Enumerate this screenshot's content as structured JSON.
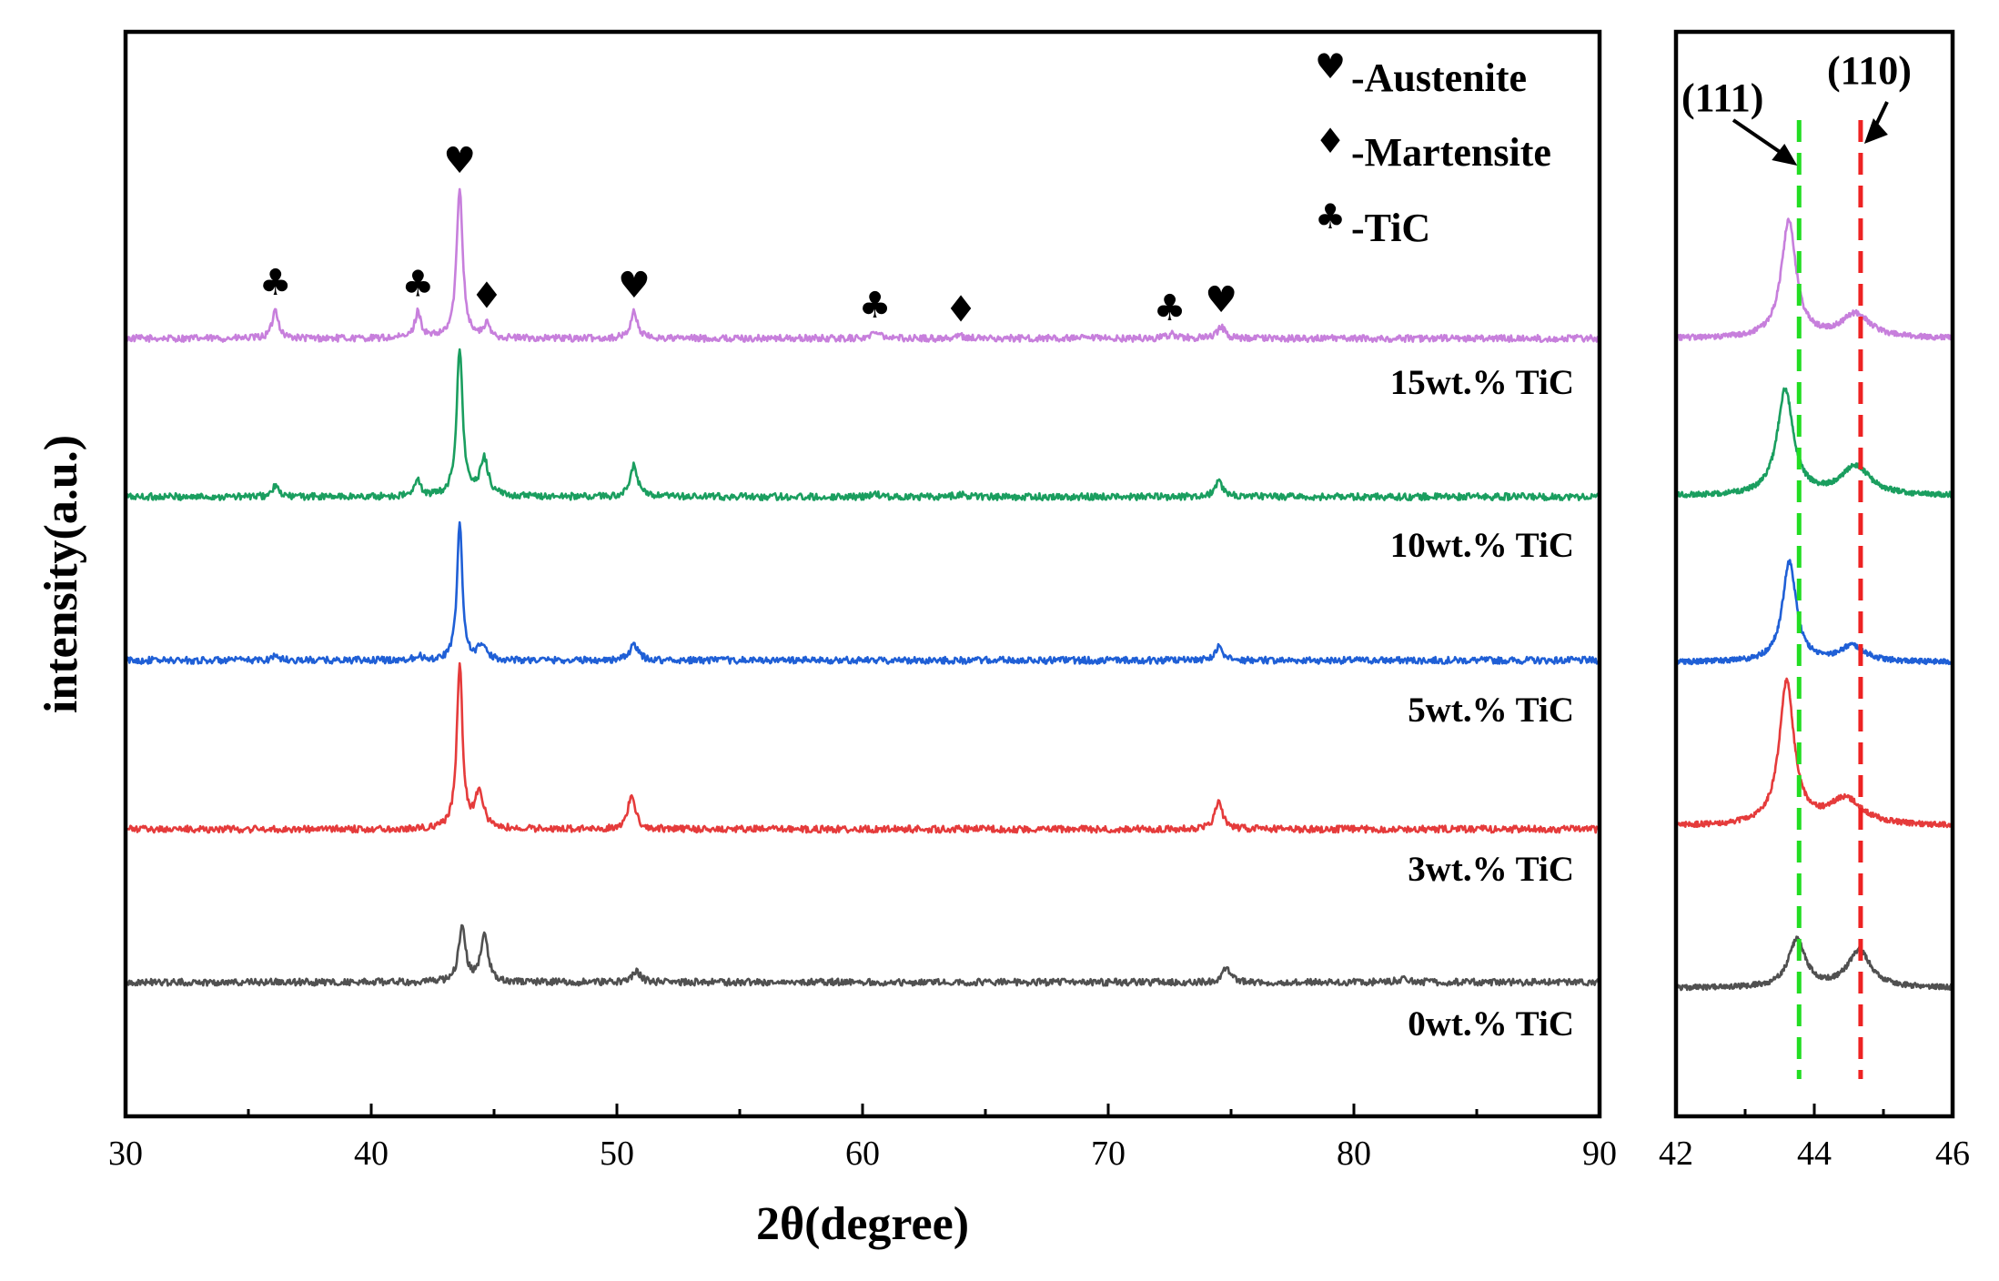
{
  "chart_data": [
    {
      "type": "line",
      "name": "full-scan",
      "xlabel": "2θ(degree)",
      "ylabel": "intensity(a.u.)",
      "xlim": [
        30,
        90
      ],
      "xticks": [
        30,
        40,
        50,
        60,
        70,
        80,
        90
      ],
      "minor_xticks": [
        35,
        45,
        55,
        65,
        75,
        85
      ],
      "series": [
        {
          "name": "15wt.% TiC",
          "color": "#c77fdc",
          "baseline": 0.0,
          "peaks": [
            [
              36.1,
              0.55,
              0.15
            ],
            [
              41.9,
              0.5,
              0.15
            ],
            [
              43.6,
              2.85,
              0.15
            ],
            [
              44.7,
              0.25,
              0.15
            ],
            [
              50.7,
              0.5,
              0.17
            ],
            [
              60.6,
              0.15,
              0.2
            ],
            [
              64.0,
              0.04,
              0.3
            ],
            [
              72.6,
              0.08,
              0.25
            ],
            [
              74.6,
              0.22,
              0.18
            ]
          ]
        },
        {
          "name": "10wt.% TiC",
          "color": "#1a9e5f",
          "baseline": -3.0,
          "peaks": [
            [
              36.1,
              0.2,
              0.15
            ],
            [
              41.9,
              0.3,
              0.15
            ],
            [
              43.6,
              2.75,
              0.15
            ],
            [
              44.6,
              0.7,
              0.2
            ],
            [
              50.7,
              0.6,
              0.17
            ],
            [
              60.5,
              0.05,
              0.2
            ],
            [
              64.0,
              0.04,
              0.3
            ],
            [
              74.5,
              0.3,
              0.18
            ]
          ]
        },
        {
          "name": "5wt.% TiC",
          "color": "#1f5fd6",
          "baseline": -6.1,
          "peaks": [
            [
              36.1,
              0.1,
              0.15
            ],
            [
              41.9,
              0.1,
              0.15
            ],
            [
              43.6,
              2.6,
              0.13
            ],
            [
              44.5,
              0.3,
              0.18
            ],
            [
              50.7,
              0.3,
              0.2
            ],
            [
              74.5,
              0.25,
              0.17
            ]
          ]
        },
        {
          "name": "3wt.% TiC",
          "color": "#e53b3b",
          "baseline": -9.3,
          "peaks": [
            [
              43.6,
              3.1,
              0.14
            ],
            [
              44.4,
              0.7,
              0.2
            ],
            [
              50.6,
              0.65,
              0.18
            ],
            [
              74.5,
              0.5,
              0.2
            ]
          ]
        },
        {
          "name": "0wt.% TiC",
          "color": "#505050",
          "baseline": -12.2,
          "peaks": [
            [
              43.7,
              1.1,
              0.16
            ],
            [
              44.6,
              0.9,
              0.18
            ],
            [
              50.8,
              0.2,
              0.2
            ],
            [
              74.8,
              0.25,
              0.2
            ],
            [
              82.0,
              0.05,
              0.4
            ]
          ]
        }
      ],
      "sample_labels": [
        "15wt.% TiC",
        "10wt.% TiC",
        "5wt.% TiC",
        "3wt.% TiC",
        "0wt.% TiC"
      ],
      "legend": [
        {
          "symbol": "♥",
          "text": "-Austenite"
        },
        {
          "symbol": "♦",
          "text": "-Martensite"
        },
        {
          "symbol": "♣",
          "text": "-TiC"
        }
      ],
      "peak_markers": [
        {
          "symbol": "♣",
          "x": 36.1,
          "phase": "TiC"
        },
        {
          "symbol": "♣",
          "x": 41.9,
          "phase": "TiC"
        },
        {
          "symbol": "♥",
          "x": 43.6,
          "phase": "Austenite"
        },
        {
          "symbol": "♦",
          "x": 44.7,
          "phase": "Martensite"
        },
        {
          "symbol": "♥",
          "x": 50.7,
          "phase": "Austenite"
        },
        {
          "symbol": "♣",
          "x": 60.5,
          "phase": "TiC"
        },
        {
          "symbol": "♦",
          "x": 64.0,
          "phase": "Martensite"
        },
        {
          "symbol": "♣",
          "x": 72.5,
          "phase": "TiC"
        },
        {
          "symbol": "♥",
          "x": 74.6,
          "phase": "Austenite"
        }
      ]
    },
    {
      "type": "line",
      "name": "zoom-inset",
      "xlim": [
        42,
        46
      ],
      "xticks": [
        42,
        44,
        46
      ],
      "minor_xticks": [
        43,
        45
      ],
      "series": [
        {
          "name": "15wt.% TiC",
          "color": "#c77fdc",
          "peaks": [
            [
              43.63,
              2.2,
              0.13
            ],
            [
              44.6,
              0.45,
              0.25
            ]
          ]
        },
        {
          "name": "10wt.% TiC",
          "color": "#1a9e5f",
          "peaks": [
            [
              43.58,
              2.0,
              0.14
            ],
            [
              44.6,
              0.55,
              0.25
            ]
          ]
        },
        {
          "name": "5wt.% TiC",
          "color": "#1f5fd6",
          "peaks": [
            [
              43.64,
              1.9,
              0.12
            ],
            [
              44.55,
              0.3,
              0.22
            ]
          ]
        },
        {
          "name": "3wt.% TiC",
          "color": "#e53b3b",
          "peaks": [
            [
              43.6,
              2.7,
              0.13
            ],
            [
              44.45,
              0.5,
              0.3
            ]
          ]
        },
        {
          "name": "0wt.% TiC",
          "color": "#505050",
          "peaks": [
            [
              43.75,
              0.9,
              0.15
            ],
            [
              44.65,
              0.7,
              0.2
            ]
          ]
        }
      ],
      "reference_lines": [
        {
          "label": "(111)",
          "x": 43.78,
          "color": "#22dd22"
        },
        {
          "label": "(110)",
          "x": 44.67,
          "color": "#ee2222"
        }
      ]
    }
  ]
}
